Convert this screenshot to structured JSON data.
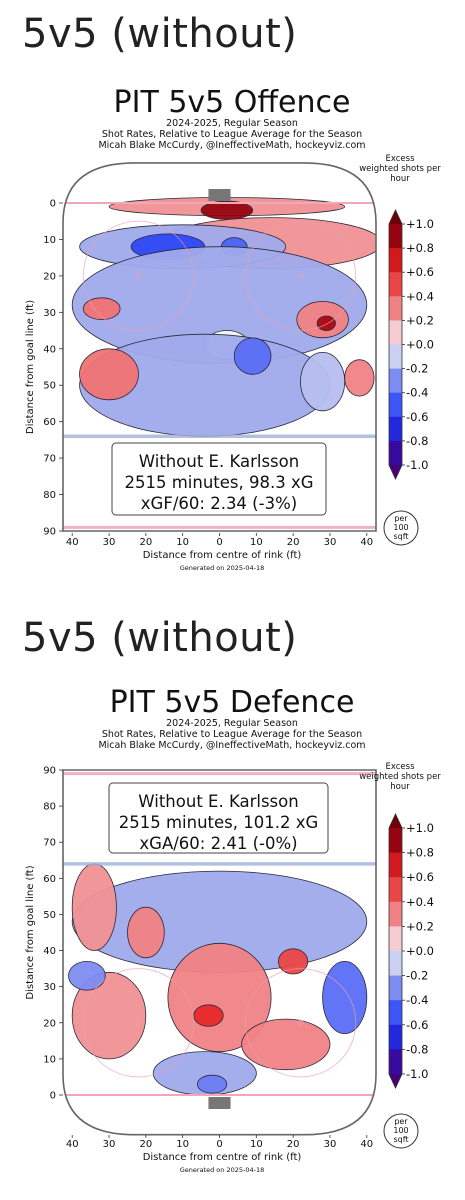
{
  "charts": [
    {
      "heading": "5v5 (without)",
      "title": "PIT 5v5 Offence",
      "subtitle_lines": [
        "2024-2025, Regular Season",
        "Shot Rates, Relative to League Average for the Season",
        "Micah Blake McCurdy, @IneffectiveMath, hockeyviz.com"
      ],
      "annotation_lines": [
        "Without E. Karlsson",
        "2515 minutes, 98.3 xG",
        "xGF/60: 2.34 (-3%)"
      ],
      "generated": "Generated on 2025-04-18",
      "unit_note": [
        "per",
        "100",
        "sqft"
      ]
    },
    {
      "heading": "5v5 (without)",
      "title": "PIT 5v5 Defence",
      "subtitle_lines": [
        "2024-2025, Regular Season",
        "Shot Rates, Relative to League Average for the Season",
        "Micah Blake McCurdy, @IneffectiveMath, hockeyviz.com"
      ],
      "annotation_lines": [
        "Without E. Karlsson",
        "2515 minutes, 101.2 xG",
        "xGA/60: 2.41 (-0%)"
      ],
      "generated": "Generated on 2025-04-18",
      "unit_note": [
        "per",
        "100",
        "sqft"
      ]
    }
  ],
  "chart_data": [
    {
      "type": "heatmap",
      "title": "PIT 5v5 Offence",
      "xlabel": "Distance from centre of rink (ft)",
      "ylabel": "Distance from goal line (ft)",
      "x_ticks": [
        "40",
        "30",
        "20",
        "10",
        "0",
        "10",
        "20",
        "30",
        "40"
      ],
      "y_ticks": [
        "0",
        "10",
        "20",
        "30",
        "40",
        "50",
        "60",
        "70",
        "80",
        "90"
      ],
      "y_direction": "down",
      "xlim": [
        -42.5,
        42.5
      ],
      "ylim": [
        0,
        90
      ],
      "colorbar": {
        "title": "Excess weighted shots per hour",
        "ticks": [
          "+1.0",
          "+0.8",
          "+0.6",
          "+0.4",
          "+0.2",
          "+0.0",
          "-0.2",
          "-0.4",
          "-0.6",
          "-0.8",
          "-1.0"
        ],
        "range": [
          -1.0,
          1.0
        ]
      },
      "regions": [
        {
          "x": 2,
          "y": 1,
          "rx": 32,
          "ry": 2.5,
          "value": 0.25
        },
        {
          "x": 2,
          "y": 2,
          "rx": 7,
          "ry": 2.5,
          "value": 0.9
        },
        {
          "x": 14,
          "y": 11,
          "rx": 30,
          "ry": 7,
          "value": 0.25
        },
        {
          "x": -10,
          "y": 12,
          "rx": 28,
          "ry": 6,
          "value": -0.2
        },
        {
          "x": -14,
          "y": 12,
          "rx": 10,
          "ry": 3.5,
          "value": -0.55
        },
        {
          "x": 4,
          "y": 12,
          "rx": 3.5,
          "ry": 2.5,
          "value": -0.45
        },
        {
          "x": 0,
          "y": 28,
          "rx": 40,
          "ry": 16,
          "value": -0.2
        },
        {
          "x": -32,
          "y": 29,
          "rx": 5,
          "ry": 3,
          "value": 0.35
        },
        {
          "x": 28,
          "y": 32,
          "rx": 7,
          "ry": 5,
          "value": 0.3
        },
        {
          "x": 29,
          "y": 33,
          "rx": 2.5,
          "ry": 2,
          "value": 0.85
        },
        {
          "x": 2,
          "y": 39,
          "rx": 6,
          "ry": 4,
          "value": 0.0
        },
        {
          "x": -4,
          "y": 50,
          "rx": 34,
          "ry": 14,
          "value": -0.2
        },
        {
          "x": -30,
          "y": 47,
          "rx": 8,
          "ry": 7,
          "value": 0.35
        },
        {
          "x": 9,
          "y": 42,
          "rx": 5,
          "ry": 5,
          "value": -0.4
        },
        {
          "x": 28,
          "y": 49,
          "rx": 6,
          "ry": 8,
          "value": -0.15
        },
        {
          "x": 38,
          "y": 48,
          "rx": 4,
          "ry": 5,
          "value": 0.3
        }
      ]
    },
    {
      "type": "heatmap",
      "title": "PIT 5v5 Defence",
      "xlabel": "Distance from centre of rink (ft)",
      "ylabel": "Distance from goal line (ft)",
      "x_ticks": [
        "40",
        "30",
        "20",
        "10",
        "0",
        "10",
        "20",
        "30",
        "40"
      ],
      "y_ticks": [
        "90",
        "80",
        "70",
        "60",
        "50",
        "40",
        "30",
        "20",
        "10",
        "0"
      ],
      "y_direction": "up",
      "xlim": [
        -42.5,
        42.5
      ],
      "ylim": [
        0,
        90
      ],
      "colorbar": {
        "title": "Excess weighted shots per hour",
        "ticks": [
          "+1.0",
          "+0.8",
          "+0.6",
          "+0.4",
          "+0.2",
          "+0.0",
          "-0.2",
          "-0.4",
          "-0.6",
          "-0.8",
          "-1.0"
        ],
        "range": [
          -1.0,
          1.0
        ]
      },
      "regions": [
        {
          "x": 0,
          "y": 48,
          "rx": 40,
          "ry": 14,
          "value": -0.2
        },
        {
          "x": -34,
          "y": 52,
          "rx": 6,
          "ry": 12,
          "value": 0.25
        },
        {
          "x": -20,
          "y": 45,
          "rx": 5,
          "ry": 7,
          "value": 0.3
        },
        {
          "x": 0,
          "y": 27,
          "rx": 14,
          "ry": 15,
          "value": 0.3
        },
        {
          "x": -3,
          "y": 22,
          "rx": 4,
          "ry": 3,
          "value": 0.6
        },
        {
          "x": 20,
          "y": 37,
          "rx": 4,
          "ry": 3.5,
          "value": 0.5
        },
        {
          "x": 18,
          "y": 14,
          "rx": 12,
          "ry": 7,
          "value": 0.3
        },
        {
          "x": -30,
          "y": 22,
          "rx": 10,
          "ry": 12,
          "value": 0.25
        },
        {
          "x": 34,
          "y": 27,
          "rx": 6,
          "ry": 10,
          "value": -0.4
        },
        {
          "x": -36,
          "y": 33,
          "rx": 5,
          "ry": 4,
          "value": -0.3
        },
        {
          "x": -4,
          "y": 6,
          "rx": 14,
          "ry": 6,
          "value": -0.2
        },
        {
          "x": -2,
          "y": 3,
          "rx": 4,
          "ry": 2.5,
          "value": -0.35
        }
      ]
    }
  ]
}
